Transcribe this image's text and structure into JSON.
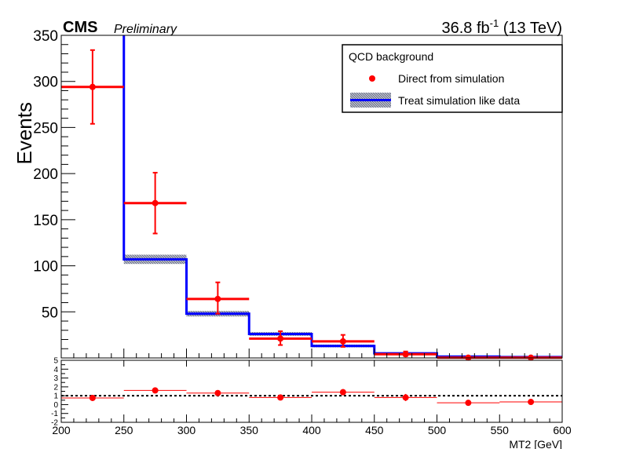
{
  "chart_data": {
    "type": "histogram",
    "header": {
      "experiment": "CMS",
      "status": "Preliminary",
      "lumi_main": "36.8 fb",
      "lumi_sup": "-1",
      "lumi_tail": " (13 TeV)"
    },
    "xlabel": "MT2 [GeV]",
    "ylabel": "Events",
    "xlim": [
      200,
      600
    ],
    "ylim": [
      0,
      350
    ],
    "x_ticks": [
      200,
      250,
      300,
      350,
      400,
      450,
      500,
      550,
      600
    ],
    "y_ticks": [
      50,
      100,
      150,
      200,
      250,
      300,
      350
    ],
    "legend": {
      "title": "QCD background",
      "entries": [
        {
          "label": "Direct from simulation",
          "style": "marker",
          "color": "#ff0000"
        },
        {
          "label": "Treat simulation like data",
          "style": "band-line",
          "color": "#0000ff"
        }
      ],
      "position": "top-right"
    },
    "bins": [
      200,
      250,
      300,
      350,
      400,
      450,
      500,
      550,
      600
    ],
    "series": [
      {
        "name": "Direct from simulation",
        "style": "points",
        "color": "#ff0000",
        "x": [
          225,
          275,
          325,
          375,
          425,
          475,
          525,
          575
        ],
        "values": [
          294,
          168,
          64,
          21,
          18,
          4,
          0.3,
          0.3
        ],
        "err_low": [
          40,
          33,
          16,
          7,
          6,
          2,
          0.2,
          0.2
        ],
        "err_high": [
          40,
          33,
          18,
          8,
          7,
          3,
          0.2,
          0.2
        ],
        "x_err": [
          25,
          25,
          25,
          25,
          25,
          25,
          25,
          25
        ]
      },
      {
        "name": "Treat simulation like data",
        "style": "step-band",
        "color": "#0000ff",
        "band_color": "#6677aa",
        "values": [
          null,
          107,
          48,
          26,
          13,
          5,
          1.5,
          1
        ],
        "band_err": [
          0,
          5,
          3,
          2,
          1.5,
          0.8,
          0.5,
          0.4
        ]
      }
    ],
    "ratio": {
      "ylim": [
        -2,
        5
      ],
      "y_ticks": [
        -2,
        -1,
        0,
        1,
        2,
        3,
        4,
        5
      ],
      "reference": 1,
      "values": [
        0.75,
        1.6,
        1.3,
        0.8,
        1.4,
        0.8,
        0.2,
        0.3
      ],
      "err": [
        0.15,
        0.25,
        0.3,
        0.2,
        0.35,
        0.4,
        0.1,
        0.1
      ]
    },
    "colors": {
      "data": "#ff0000",
      "prediction": "#0000ff",
      "axis": "#000000"
    }
  }
}
